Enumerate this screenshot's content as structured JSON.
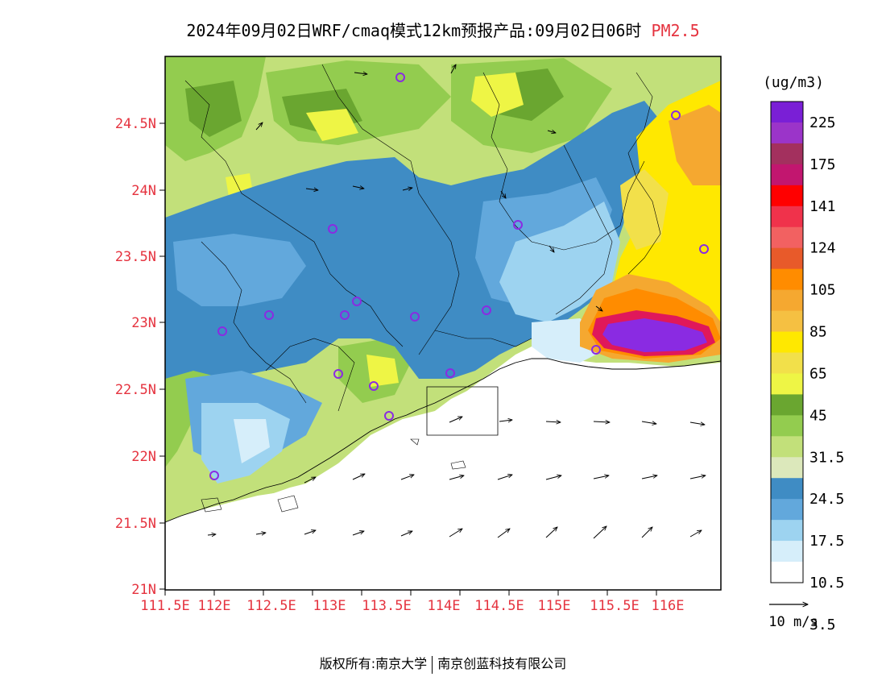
{
  "title": {
    "main": "2024年09月02日WRF/cmaq模式12km预报产品:09月02日06时",
    "pollutant": "PM2.5"
  },
  "map": {
    "lat_ticks": [
      "24.5N",
      "24N",
      "23.5N",
      "23N",
      "22.5N",
      "22N",
      "21.5N",
      "21N"
    ],
    "lon_ticks": [
      "111.5E",
      "112E",
      "112.5E",
      "113E",
      "113.5E",
      "114E",
      "114.5E",
      "115E",
      "115.5E",
      "116E"
    ]
  },
  "legend": {
    "unit": "(ug/m3)",
    "labels": [
      "225",
      "175",
      "141",
      "124",
      "105",
      "85",
      "65",
      "45",
      "31.5",
      "24.5",
      "17.5",
      "10.5",
      "3.5"
    ],
    "colors": [
      "#7a1fd6",
      "#9b34c9",
      "#a3305e",
      "#c2166f",
      "#ff0000",
      "#f0324b",
      "#f26161",
      "#e85a2a",
      "#ff8c00",
      "#f5a830",
      "#f5c042",
      "#ffe800",
      "#f2e04a",
      "#eef545",
      "#6aa630",
      "#93cc4f",
      "#c2e07a",
      "#dce8bb",
      "#3f8cc4",
      "#62a8dc",
      "#9dd3f0",
      "#d6eefa",
      "#ffffff"
    ],
    "wind_ref": "10 m/s"
  },
  "footer": {
    "copyright": "版权所有:南京大学",
    "company": "南京创蓝科技有限公司"
  },
  "colors": {
    "tick_label": "#e5333f",
    "purple_high": "#8a2be2",
    "red_ring": "#e0185a",
    "orange_band": "#ff8c00",
    "yellow": "#ffe800",
    "green": "#93cc4f",
    "blue": "#3f8cc4",
    "light_blue": "#9dd3f0"
  }
}
